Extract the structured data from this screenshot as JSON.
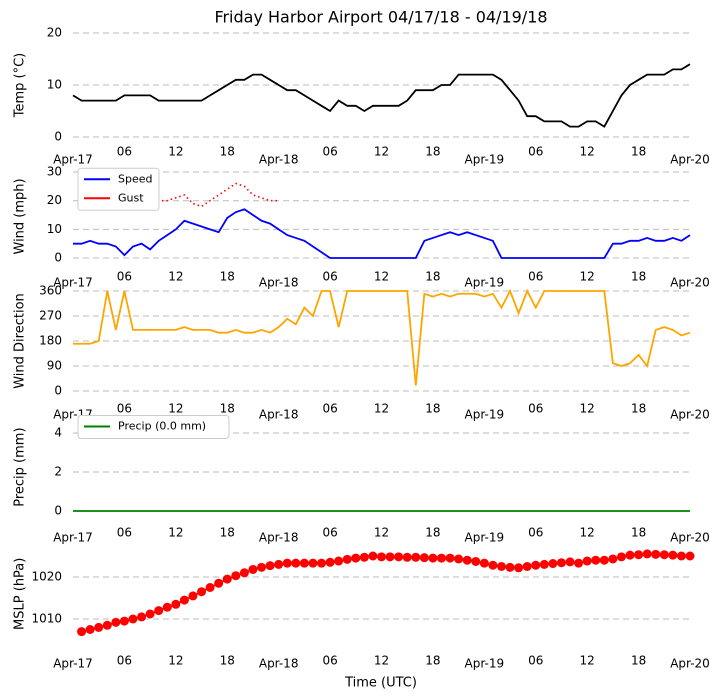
{
  "chart_data": [
    {
      "type": "line",
      "title": "Friday Harbor Airport 04/17/18 - 04/19/18",
      "ylabel": "Temp (°C)",
      "x": [
        0,
        1,
        2,
        3,
        4,
        5,
        6,
        7,
        8,
        9,
        10,
        11,
        12,
        13,
        14,
        15,
        16,
        17,
        18,
        19,
        20,
        21,
        22,
        23,
        24,
        25,
        26,
        27,
        28,
        29,
        30,
        31,
        32,
        33,
        34,
        35,
        36,
        37,
        38,
        39,
        40,
        41,
        42,
        43,
        44,
        45,
        46,
        47,
        48,
        49,
        50,
        51,
        52,
        53,
        54,
        55,
        56,
        57,
        58,
        59,
        60,
        61,
        62,
        63,
        64,
        65,
        66,
        67,
        68,
        69,
        70,
        71,
        72
      ],
      "series": [
        {
          "name": "Temp",
          "color": "#000000",
          "values": [
            8,
            7,
            7,
            7,
            7,
            7,
            8,
            8,
            8,
            8,
            7,
            7,
            7,
            7,
            7,
            7,
            8,
            9,
            10,
            11,
            11,
            12,
            12,
            11,
            10,
            9,
            9,
            8,
            7,
            6,
            5,
            7,
            6,
            6,
            5,
            6,
            6,
            6,
            6,
            7,
            9,
            9,
            9,
            10,
            10,
            12,
            12,
            12,
            12,
            12,
            11,
            9,
            7,
            4,
            4,
            3,
            3,
            3,
            2,
            2,
            3,
            3,
            2,
            5,
            8,
            10,
            11,
            12,
            12,
            12,
            13,
            13,
            14
          ]
        }
      ],
      "xlim": [
        0,
        72
      ],
      "ylim": [
        0,
        20
      ],
      "yticks": [
        0,
        10,
        20
      ],
      "grid": true,
      "xticks": [
        {
          "value": 0,
          "label": "Apr-17"
        },
        {
          "value": 6,
          "label": "06"
        },
        {
          "value": 12,
          "label": "12"
        },
        {
          "value": 18,
          "label": "18"
        },
        {
          "value": 24,
          "label": "Apr-18"
        },
        {
          "value": 30,
          "label": "06"
        },
        {
          "value": 36,
          "label": "12"
        },
        {
          "value": 42,
          "label": "18"
        },
        {
          "value": 48,
          "label": "Apr-19"
        },
        {
          "value": 54,
          "label": "06"
        },
        {
          "value": 60,
          "label": "12"
        },
        {
          "value": 66,
          "label": "18"
        },
        {
          "value": 72,
          "label": "Apr-20"
        }
      ]
    },
    {
      "type": "line",
      "ylabel": "Wind (mph)",
      "legend": "upper left",
      "x": [
        0,
        1,
        2,
        3,
        4,
        5,
        6,
        7,
        8,
        9,
        10,
        11,
        12,
        13,
        14,
        15,
        16,
        17,
        18,
        19,
        20,
        21,
        22,
        23,
        24,
        25,
        26,
        27,
        28,
        29,
        30,
        31,
        32,
        33,
        34,
        35,
        36,
        37,
        38,
        39,
        40,
        41,
        42,
        43,
        44,
        45,
        46,
        47,
        48,
        49,
        50,
        51,
        52,
        53,
        54,
        55,
        56,
        57,
        58,
        59,
        60,
        61,
        62,
        63,
        64,
        65,
        66,
        67,
        68,
        69,
        70,
        71,
        72
      ],
      "series": [
        {
          "name": "Speed",
          "color": "#0000ff",
          "values": [
            5,
            5,
            6,
            5,
            5,
            4,
            1,
            4,
            5,
            3,
            6,
            8,
            10,
            13,
            12,
            11,
            10,
            9,
            14,
            16,
            17,
            15,
            13,
            12,
            10,
            8,
            7,
            6,
            4,
            2,
            0,
            0,
            0,
            0,
            0,
            0,
            0,
            0,
            0,
            0,
            0,
            6,
            7,
            8,
            9,
            8,
            9,
            8,
            7,
            6,
            0,
            0,
            0,
            0,
            0,
            0,
            0,
            0,
            0,
            0,
            0,
            0,
            0,
            5,
            5,
            6,
            6,
            7,
            6,
            6,
            7,
            6,
            8
          ]
        },
        {
          "name": "Gust",
          "color": "#ff0000",
          "linestyle": "dotted",
          "values": [
            null,
            null,
            null,
            null,
            null,
            null,
            null,
            null,
            null,
            18,
            20,
            20,
            21,
            22,
            19,
            18,
            20,
            22,
            24,
            26,
            25,
            22,
            21,
            20,
            20,
            null,
            null,
            null,
            null,
            null,
            null,
            null,
            null,
            null,
            null,
            null,
            null,
            null,
            null,
            null,
            null,
            null,
            null,
            null,
            null,
            null,
            null,
            null,
            null,
            null,
            null,
            null,
            null,
            null,
            null,
            null,
            null,
            null,
            null,
            null,
            null,
            null,
            null,
            null,
            null,
            null,
            null,
            null,
            null,
            null,
            null,
            null,
            null
          ]
        }
      ],
      "xlim": [
        0,
        72
      ],
      "ylim": [
        -3,
        32
      ],
      "yticks": [
        0,
        10,
        20,
        30
      ],
      "grid": true,
      "xticks": [
        {
          "value": 0,
          "label": "Apr-17"
        },
        {
          "value": 6,
          "label": "06"
        },
        {
          "value": 12,
          "label": "12"
        },
        {
          "value": 18,
          "label": "18"
        },
        {
          "value": 24,
          "label": "Apr-18"
        },
        {
          "value": 30,
          "label": "06"
        },
        {
          "value": 36,
          "label": "12"
        },
        {
          "value": 42,
          "label": "18"
        },
        {
          "value": 48,
          "label": "Apr-19"
        },
        {
          "value": 54,
          "label": "06"
        },
        {
          "value": 60,
          "label": "12"
        },
        {
          "value": 66,
          "label": "18"
        },
        {
          "value": 72,
          "label": "Apr-20"
        }
      ]
    },
    {
      "type": "line",
      "ylabel": "Wind Direction",
      "x": [
        0,
        1,
        2,
        3,
        4,
        5,
        6,
        7,
        8,
        9,
        10,
        11,
        12,
        13,
        14,
        15,
        16,
        17,
        18,
        19,
        20,
        21,
        22,
        23,
        24,
        25,
        26,
        27,
        28,
        29,
        30,
        31,
        32,
        33,
        34,
        35,
        36,
        37,
        38,
        39,
        40,
        41,
        42,
        43,
        44,
        45,
        46,
        47,
        48,
        49,
        50,
        51,
        52,
        53,
        54,
        55,
        56,
        57,
        58,
        59,
        60,
        61,
        62,
        63,
        64,
        65,
        66,
        67,
        68,
        69,
        70,
        71,
        72
      ],
      "series": [
        {
          "name": "Direction",
          "color": "#ffa500",
          "values": [
            170,
            170,
            170,
            180,
            360,
            220,
            360,
            220,
            220,
            220,
            220,
            220,
            220,
            230,
            220,
            220,
            220,
            210,
            210,
            220,
            210,
            210,
            220,
            210,
            230,
            260,
            240,
            300,
            270,
            360,
            360,
            230,
            360,
            360,
            360,
            360,
            360,
            360,
            360,
            360,
            20,
            350,
            340,
            350,
            340,
            350,
            350,
            350,
            340,
            350,
            300,
            360,
            280,
            360,
            300,
            360,
            360,
            360,
            360,
            360,
            360,
            360,
            360,
            100,
            90,
            100,
            130,
            90,
            220,
            230,
            220,
            200,
            210
          ]
        }
      ],
      "xlim": [
        0,
        72
      ],
      "ylim": [
        0,
        360
      ],
      "yticks": [
        0,
        90,
        180,
        270,
        360
      ],
      "grid": true,
      "xticks": [
        {
          "value": 0,
          "label": "Apr-17"
        },
        {
          "value": 6,
          "label": "06"
        },
        {
          "value": 12,
          "label": "12"
        },
        {
          "value": 18,
          "label": "18"
        },
        {
          "value": 24,
          "label": "Apr-18"
        },
        {
          "value": 30,
          "label": "06"
        },
        {
          "value": 36,
          "label": "12"
        },
        {
          "value": 42,
          "label": "18"
        },
        {
          "value": 48,
          "label": "Apr-19"
        },
        {
          "value": 54,
          "label": "06"
        },
        {
          "value": 60,
          "label": "12"
        },
        {
          "value": 66,
          "label": "18"
        },
        {
          "value": 72,
          "label": "Apr-20"
        }
      ]
    },
    {
      "type": "line",
      "ylabel": "Precip (mm)",
      "legend": "upper left",
      "x": [
        0,
        1,
        2,
        3,
        4,
        5,
        6,
        7,
        8,
        9,
        10,
        11,
        12,
        13,
        14,
        15,
        16,
        17,
        18,
        19,
        20,
        21,
        22,
        23,
        24,
        25,
        26,
        27,
        28,
        29,
        30,
        31,
        32,
        33,
        34,
        35,
        36,
        37,
        38,
        39,
        40,
        41,
        42,
        43,
        44,
        45,
        46,
        47,
        48,
        49,
        50,
        51,
        52,
        53,
        54,
        55,
        56,
        57,
        58,
        59,
        60,
        61,
        62,
        63,
        64,
        65,
        66,
        67,
        68,
        69,
        70,
        71,
        72
      ],
      "series": [
        {
          "name": "Precip (0.0 mm)",
          "color": "#008000",
          "values": [
            0,
            0,
            0,
            0,
            0,
            0,
            0,
            0,
            0,
            0,
            0,
            0,
            0,
            0,
            0,
            0,
            0,
            0,
            0,
            0,
            0,
            0,
            0,
            0,
            0,
            0,
            0,
            0,
            0,
            0,
            0,
            0,
            0,
            0,
            0,
            0,
            0,
            0,
            0,
            0,
            0,
            0,
            0,
            0,
            0,
            0,
            0,
            0,
            0,
            0,
            0,
            0,
            0,
            0,
            0,
            0,
            0,
            0,
            0,
            0,
            0,
            0,
            0,
            0,
            0,
            0,
            0,
            0,
            0,
            0,
            0,
            0,
            0
          ]
        }
      ],
      "xlim": [
        0,
        72
      ],
      "ylim": [
        -0.5,
        5
      ],
      "yticks": [
        0,
        2,
        4
      ],
      "grid": true,
      "xticks": [
        {
          "value": 0,
          "label": "Apr-17"
        },
        {
          "value": 6,
          "label": "06"
        },
        {
          "value": 12,
          "label": "12"
        },
        {
          "value": 18,
          "label": "18"
        },
        {
          "value": 24,
          "label": "Apr-18"
        },
        {
          "value": 30,
          "label": "06"
        },
        {
          "value": 36,
          "label": "12"
        },
        {
          "value": 42,
          "label": "18"
        },
        {
          "value": 48,
          "label": "Apr-19"
        },
        {
          "value": 54,
          "label": "06"
        },
        {
          "value": 60,
          "label": "12"
        },
        {
          "value": 66,
          "label": "18"
        },
        {
          "value": 72,
          "label": "Apr-20"
        }
      ]
    },
    {
      "type": "line",
      "ylabel": "MSLP (hPa)",
      "xlabel": "Time (UTC)",
      "x": [
        0,
        1,
        2,
        3,
        4,
        5,
        6,
        7,
        8,
        9,
        10,
        11,
        12,
        13,
        14,
        15,
        16,
        17,
        18,
        19,
        20,
        21,
        22,
        23,
        24,
        25,
        26,
        27,
        28,
        29,
        30,
        31,
        32,
        33,
        34,
        35,
        36,
        37,
        38,
        39,
        40,
        41,
        42,
        43,
        44,
        45,
        46,
        47,
        48,
        49,
        50,
        51,
        52,
        53,
        54,
        55,
        56,
        57,
        58,
        59,
        60,
        61,
        62,
        63,
        64,
        65,
        66,
        67,
        68,
        69,
        70,
        71,
        72
      ],
      "series": [
        {
          "name": "MSLP",
          "color": "#ff0000",
          "marker": "o",
          "values": [
            null,
            1007,
            1007.5,
            1008,
            1008.5,
            1009.2,
            1009.5,
            1010,
            1010.5,
            1011.2,
            1012,
            1012.8,
            1013.5,
            1014.5,
            1015.5,
            1016.5,
            1017.5,
            1018.5,
            1019.5,
            1020.3,
            1021,
            1021.8,
            1022.3,
            1022.7,
            1023,
            1023.3,
            1023.3,
            1023.3,
            1023.3,
            1023.3,
            1023.5,
            1023.8,
            1024.2,
            1024.5,
            1024.7,
            1025,
            1024.8,
            1024.8,
            1024.8,
            1024.7,
            1024.7,
            1024.6,
            1024.5,
            1024.5,
            1024.5,
            1024.3,
            1024,
            1023.7,
            1023.3,
            1022.8,
            1022.5,
            1022.3,
            1022.2,
            1022.5,
            1022.8,
            1023,
            1023.2,
            1023.4,
            1023.6,
            1023.3,
            1023.8,
            1024,
            1024,
            1024.3,
            1024.8,
            1025.2,
            1025.3,
            1025.5,
            1025.4,
            1025.3,
            1025.2,
            1025,
            1025
          ]
        }
      ],
      "xlim": [
        0,
        72
      ],
      "ylim": [
        1004,
        1028
      ],
      "yticks": [
        1010,
        1020
      ],
      "grid": true,
      "xticks": [
        {
          "value": 0,
          "label": "Apr-17"
        },
        {
          "value": 6,
          "label": "06"
        },
        {
          "value": 12,
          "label": "12"
        },
        {
          "value": 18,
          "label": "18"
        },
        {
          "value": 24,
          "label": "Apr-18"
        },
        {
          "value": 30,
          "label": "06"
        },
        {
          "value": 36,
          "label": "12"
        },
        {
          "value": 42,
          "label": "18"
        },
        {
          "value": 48,
          "label": "Apr-19"
        },
        {
          "value": 54,
          "label": "06"
        },
        {
          "value": 60,
          "label": "12"
        },
        {
          "value": 66,
          "label": "18"
        },
        {
          "value": 72,
          "label": "Apr-20"
        }
      ]
    }
  ]
}
